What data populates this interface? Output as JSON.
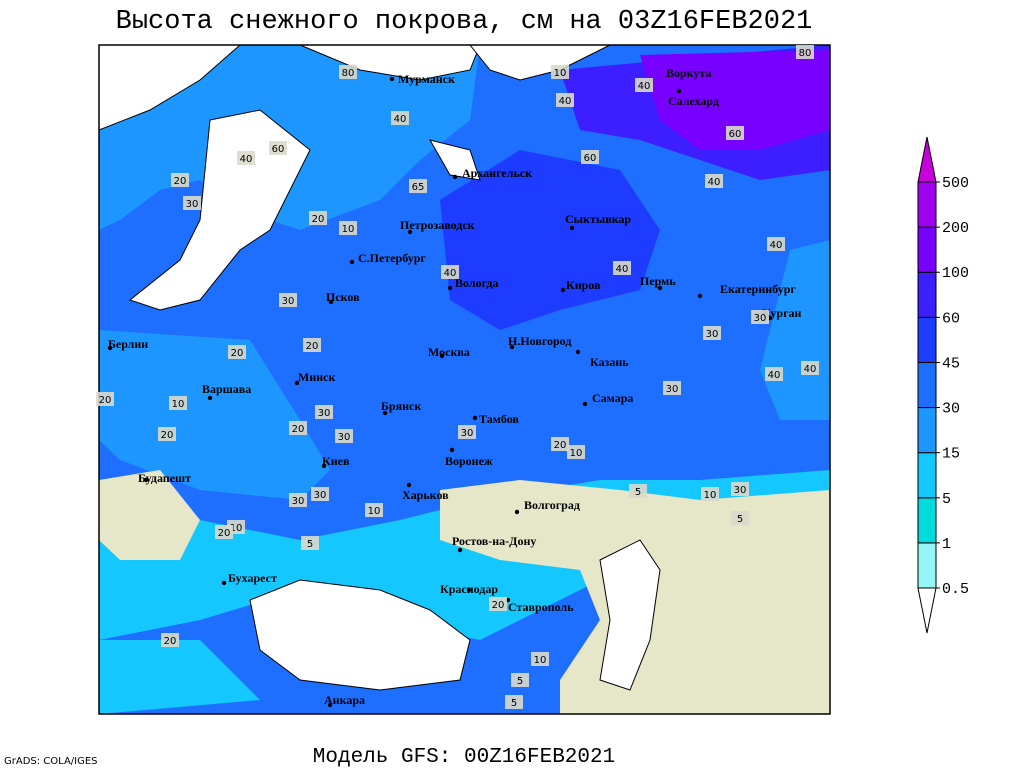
{
  "header": {
    "title": "Высота снежного покрова, см на 03Z16FEB2021"
  },
  "footer": {
    "model": "Модель GFS: 00Z16FEB2021",
    "credit": "GrADS: COLA/IGES"
  },
  "cities": [
    "Мурманск",
    "Воркута",
    "Салехард",
    "Архангельск",
    "Петрозаводск",
    "Сыктывкар",
    "С.Петербург",
    "Вологда",
    "Киров",
    "Пермь",
    "Екатеринбург",
    "Курган",
    "Псков",
    "Н.Новгород",
    "Казань",
    "Берлин",
    "Москва",
    "Минск",
    "Варшава",
    "Самара",
    "Брянск",
    "Тамбов",
    "Киев",
    "Воронеж",
    "Будапешт",
    "Харьков",
    "Волгоград",
    "Ростов-на-Дону",
    "Бухарест",
    "Краснодар",
    "Ставрополь",
    "Анкара"
  ],
  "contour_labels": [
    80,
    80,
    10,
    40,
    60,
    40,
    40,
    60,
    40,
    20,
    30,
    65,
    20,
    10,
    60,
    40,
    40,
    30,
    40,
    40,
    30,
    40,
    20,
    30,
    20,
    40,
    30,
    30,
    20,
    30,
    10,
    20,
    20,
    30,
    10,
    30,
    10,
    5,
    10,
    20,
    30,
    5,
    30,
    5,
    20,
    20,
    10,
    5,
    10,
    20,
    5
  ],
  "legend": {
    "levels": [
      0.5,
      1,
      5,
      15,
      30,
      45,
      60,
      100,
      200,
      500
    ],
    "colors": [
      "#ffffff",
      "#96f5f5",
      "#00dcdc",
      "#14c8ff",
      "#1e96ff",
      "#1e6eff",
      "#1e3cff",
      "#3c1eff",
      "#7800ff",
      "#a000f0",
      "#c800dc"
    ]
  }
}
